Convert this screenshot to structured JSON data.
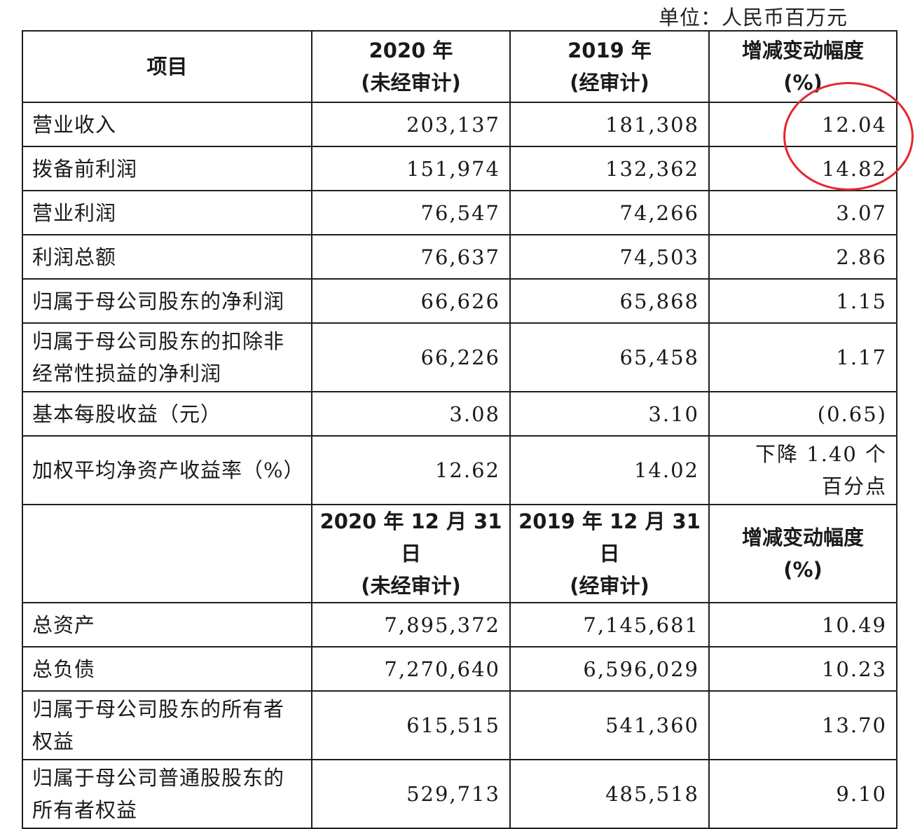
{
  "unit": "单位：人民币百万元",
  "header1": {
    "item": "项目",
    "col2020_line1": "2020 年",
    "col2020_line2": "(未经审计)",
    "col2019_line1": "2019 年",
    "col2019_line2": "(经审计)",
    "change_line1": "增减变动幅度",
    "change_line2": "(%)"
  },
  "rows1": [
    {
      "label": [
        "营业收入"
      ],
      "v2020": "203,137",
      "v2019": "181,308",
      "change": [
        "12.04"
      ]
    },
    {
      "label": [
        "拨备前利润"
      ],
      "v2020": "151,974",
      "v2019": "132,362",
      "change": [
        "14.82"
      ]
    },
    {
      "label": [
        "营业利润"
      ],
      "v2020": "76,547",
      "v2019": "74,266",
      "change": [
        "3.07"
      ]
    },
    {
      "label": [
        "利润总额"
      ],
      "v2020": "76,637",
      "v2019": "74,503",
      "change": [
        "2.86"
      ]
    },
    {
      "label": [
        "归属于母公司股东的净利润"
      ],
      "v2020": "66,626",
      "v2019": "65,868",
      "change": [
        "1.15"
      ]
    },
    {
      "label": [
        "归属于母公司股东的扣除非",
        "经常性损益的净利润"
      ],
      "v2020": "66,226",
      "v2019": "65,458",
      "change": [
        "1.17"
      ]
    },
    {
      "label": [
        "基本每股收益（元）"
      ],
      "v2020": "3.08",
      "v2019": "3.10",
      "change": [
        "(0.65)"
      ]
    },
    {
      "label": [
        "加权平均净资产收益率（%）"
      ],
      "v2020": "12.62",
      "v2019": "14.02",
      "change": [
        "下降 1.40 个",
        "百分点"
      ]
    }
  ],
  "header2": {
    "item": "",
    "col2020_line1": "2020 年 12 月 31 日",
    "col2020_line2": "(未经审计)",
    "col2019_line1": "2019 年 12 月 31 日",
    "col2019_line2": "(经审计)",
    "change_line1": "增减变动幅度",
    "change_line2": "(%)"
  },
  "rows2": [
    {
      "label": [
        "总资产"
      ],
      "v2020": "7,895,372",
      "v2019": "7,145,681",
      "change": [
        "10.49"
      ]
    },
    {
      "label": [
        "总负债"
      ],
      "v2020": "7,270,640",
      "v2019": "6,596,029",
      "change": [
        "10.23"
      ]
    },
    {
      "label": [
        "归属于母公司股东的所有者",
        "权益"
      ],
      "v2020": "615,515",
      "v2019": "541,360",
      "change": [
        "13.70"
      ]
    },
    {
      "label": [
        "归属于母公司普通股股东的",
        "所有者权益"
      ],
      "v2020": "529,713",
      "v2019": "485,518",
      "change": [
        "9.10"
      ]
    }
  ],
  "annotation_color": "#e5262c"
}
